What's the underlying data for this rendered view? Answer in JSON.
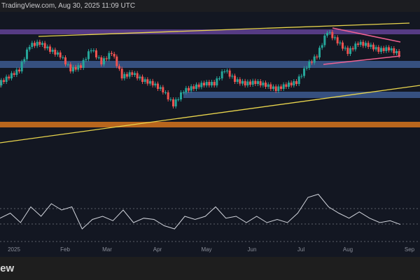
{
  "header": {
    "title": "TradingView.com, Aug 30, 2025 11:09 UTC"
  },
  "footer": {
    "brand": "TradingView"
  },
  "colors": {
    "up": "#26a69a",
    "down": "#ef5350",
    "purple_zone": "#5e3f8f",
    "blue_zone": "#3d5a8f",
    "orange_zone": "#b8661d",
    "trendline": "#e8d44d",
    "triangle": "#f06292",
    "rsi": "#d1d4dc"
  },
  "chart_data": {
    "type": "candlestick",
    "x_tick_labels": [
      "2025",
      "Feb",
      "Mar",
      "Apr",
      "May",
      "Jun",
      "Jul",
      "Aug",
      "Sep"
    ],
    "price_close_path": [
      80,
      90,
      100,
      135,
      138,
      128,
      120,
      100,
      105,
      130,
      110,
      125,
      90,
      95,
      85,
      80,
      70,
      50,
      70,
      75,
      80,
      80,
      100,
      85,
      80,
      82,
      78,
      72,
      78,
      82,
      105,
      120,
      155,
      140,
      125,
      138,
      135,
      128,
      130,
      122
    ],
    "rsi_path": [
      27,
      35,
      20,
      45,
      30,
      50,
      40,
      45,
      10,
      25,
      30,
      23,
      40,
      20,
      27,
      25,
      15,
      10,
      30,
      25,
      30,
      45,
      27,
      30,
      20,
      30,
      20,
      25,
      20,
      35,
      60,
      65,
      45,
      35,
      27,
      37,
      27,
      20,
      23,
      17
    ],
    "zones": [
      "purple resistance",
      "blue support upper",
      "blue support lower",
      "orange support"
    ],
    "patterns": [
      "rising trendline upper",
      "rising trendline lower",
      "symmetrical triangle"
    ]
  }
}
